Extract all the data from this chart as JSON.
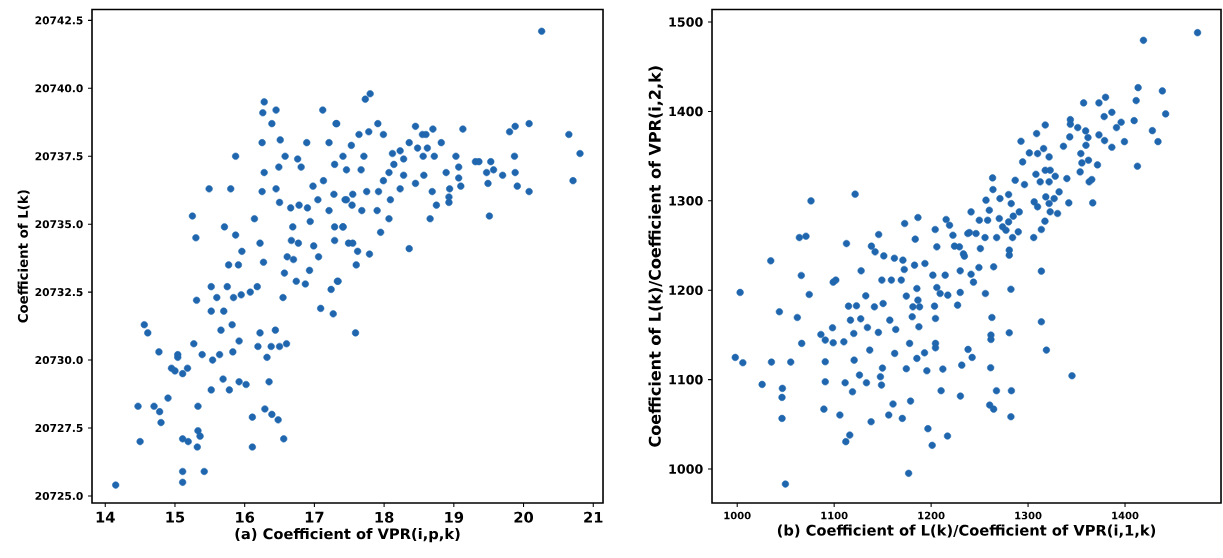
{
  "chart_data": [
    {
      "type": "scatter",
      "xlabel": "(a) Coefficient of VPR(i,p,k)",
      "ylabel": "Coefficient of L(k)",
      "marker": "circle",
      "xlim": [
        13.81,
        21.14
      ],
      "ylim": [
        20724.74,
        20742.9
      ],
      "xticks": [
        14,
        15,
        16,
        17,
        18,
        19,
        20,
        21
      ],
      "yticks": [
        {
          "value": 20725,
          "label": "20725.0"
        },
        {
          "value": 20727.5,
          "label": "20727.5"
        },
        {
          "value": 20730,
          "label": "20730.0"
        },
        {
          "value": 20732.5,
          "label": "20732.5"
        },
        {
          "value": 20735,
          "label": "20735.0"
        },
        {
          "value": 20737.5,
          "label": "20737.5"
        },
        {
          "value": 20740,
          "label": "20740.0"
        },
        {
          "value": 20742.5,
          "label": "20742.5"
        }
      ],
      "series": [
        {
          "color": "#1f66ae",
          "x": [
            14.15,
            14.47,
            14.5,
            14.56,
            14.61,
            14.7,
            14.78,
            14.8,
            14.77,
            14.9,
            14.95,
            15.0,
            15.04,
            15.04,
            15.11,
            15.11,
            15.11,
            15.11,
            15.19,
            15.18,
            15.25,
            15.3,
            15.31,
            15.27,
            15.33,
            15.32,
            15.33,
            15.36,
            15.39,
            15.42,
            15.49,
            15.52,
            15.52,
            15.54,
            15.52,
            15.6,
            15.64,
            15.66,
            15.69,
            15.7,
            15.71,
            15.75,
            15.77,
            15.78,
            15.82,
            15.8,
            15.87,
            15.87,
            15.84,
            15.83,
            15.92,
            15.92,
            15.91,
            15.95,
            15.96,
            16.02,
            16.08,
            16.11,
            16.11,
            16.14,
            16.18,
            16.19,
            16.22,
            16.22,
            16.25,
            16.25,
            16.26,
            16.28,
            16.27,
            16.29,
            16.28,
            16.32,
            16.35,
            16.38,
            16.39,
            16.39,
            16.44,
            16.45,
            16.45,
            16.48,
            16.49,
            16.5,
            16.5,
            16.51,
            16.55,
            16.56,
            16.57,
            16.58,
            16.6,
            16.61,
            16.66,
            16.67,
            16.69,
            16.7,
            16.74,
            16.76,
            16.77,
            16.78,
            16.81,
            16.87,
            16.89,
            16.9,
            16.93,
            16.94,
            16.98,
            16.99,
            17.05,
            17.06,
            17.09,
            17.12,
            17.13,
            17.21,
            17.21,
            17.24,
            17.27,
            17.29,
            17.29,
            17.32,
            17.33,
            17.28,
            17.41,
            17.44,
            17.46,
            17.49,
            20.26,
            17.73,
            17.8,
            17.31,
            17.91,
            17.64,
            17.78,
            17.99,
            18.45,
            18.55,
            18.6,
            18.7,
            19.13,
            19.8,
            19.88,
            20.08,
            20.65,
            20.81,
            20.71,
            19.87,
            19.88,
            19.91,
            20.08,
            19.51,
            19.7,
            19.53,
            19.57,
            19.47,
            19.49,
            19.31,
            19.36,
            19.03,
            19.07,
            19.07,
            19.1,
            18.94,
            18.93,
            18.93,
            18.89,
            18.82,
            18.75,
            18.66,
            18.69,
            18.57,
            18.56,
            18.48,
            18.62,
            18.72,
            18.36,
            18.23,
            18.28,
            18.12,
            18.14,
            18.07,
            17.99,
            17.92,
            18.09,
            18.23,
            18.45,
            18.36,
            18.07,
            17.95,
            17.9,
            17.75,
            17.71,
            17.67,
            17.79,
            17.62,
            17.6,
            17.55,
            17.68,
            17.54,
            17.46,
            17.53,
            17.41,
            17.59,
            17.34,
            17.29,
            17.41,
            17.55,
            18.28
          ],
          "values": [
            20725.4,
            20728.3,
            20727.0,
            20731.3,
            20731.0,
            20728.3,
            20728.1,
            20727.7,
            20730.3,
            20728.6,
            20729.7,
            20729.6,
            20730.2,
            20730.1,
            20729.5,
            20725.9,
            20725.5,
            20727.1,
            20727.0,
            20729.7,
            20735.3,
            20734.5,
            20732.2,
            20730.6,
            20728.3,
            20726.8,
            20727.4,
            20727.2,
            20730.2,
            20725.9,
            20736.3,
            20732.7,
            20731.8,
            20730.0,
            20728.9,
            20732.3,
            20730.2,
            20731.1,
            20729.3,
            20731.8,
            20734.9,
            20732.7,
            20733.5,
            20728.9,
            20731.3,
            20736.3,
            20737.5,
            20734.6,
            20732.3,
            20730.3,
            20730.7,
            20729.2,
            20733.5,
            20732.4,
            20734.0,
            20729.1,
            20732.5,
            20727.9,
            20726.8,
            20735.2,
            20732.7,
            20730.5,
            20734.3,
            20731.0,
            20736.2,
            20738.0,
            20739.1,
            20739.5,
            20733.6,
            20728.2,
            20736.9,
            20730.1,
            20729.2,
            20730.5,
            20738.7,
            20728.0,
            20731.1,
            20739.2,
            20736.3,
            20727.8,
            20737.1,
            20735.8,
            20730.5,
            20738.1,
            20732.3,
            20727.1,
            20733.2,
            20737.5,
            20730.6,
            20733.8,
            20735.6,
            20734.4,
            20734.9,
            20733.7,
            20732.9,
            20737.4,
            20734.3,
            20735.7,
            20737.1,
            20732.8,
            20738.0,
            20735.6,
            20733.3,
            20735.1,
            20736.4,
            20734.2,
            20735.9,
            20733.8,
            20731.9,
            20739.2,
            20736.6,
            20735.5,
            20738.0,
            20732.6,
            20731.7,
            20737.2,
            20734.4,
            20738.7,
            20732.9,
            20736.1,
            20734.9,
            20735.9,
            20737.0,
            20734.3,
            20742.1,
            20739.6,
            20739.8,
            20738.7,
            20738.7,
            20738.3,
            20738.4,
            20738.3,
            20738.6,
            20738.3,
            20738.3,
            20738.5,
            20738.5,
            20738.4,
            20738.6,
            20738.7,
            20738.3,
            20737.6,
            20736.6,
            20737.5,
            20736.9,
            20736.4,
            20736.2,
            20735.3,
            20736.8,
            20737.3,
            20737.0,
            20736.9,
            20736.5,
            20737.3,
            20737.3,
            20737.5,
            20737.1,
            20736.7,
            20736.4,
            20736.3,
            20736.0,
            20735.8,
            20736.9,
            20738.0,
            20735.7,
            20735.2,
            20736.2,
            20736.8,
            20737.5,
            20737.8,
            20737.8,
            20737.5,
            20738.0,
            20737.7,
            20737.4,
            20737.6,
            20737.2,
            20736.9,
            20736.6,
            20736.2,
            20735.9,
            20736.3,
            20736.5,
            20734.1,
            20735.2,
            20734.7,
            20735.5,
            20736.2,
            20737.5,
            20737.0,
            20733.9,
            20734.0,
            20733.5,
            20734.3,
            20735.5,
            20735.7,
            20735.9,
            20737.9,
            20737.5,
            20731.0,
            20732.9,
            20734.9,
            20734.9,
            20736.1,
            20736.8
          ]
        }
      ]
    },
    {
      "type": "scatter",
      "xlabel": "(b) Coefficient of L(k)/Coefficient of VPR(i,1,k)",
      "ylabel": "Coefficient of L(k)/Coefficient of VPR(i,2,k)",
      "marker": "circle",
      "xlim": [
        974,
        1499
      ],
      "ylim": [
        962,
        1514
      ],
      "xticks": [
        1000,
        1100,
        1200,
        1300,
        1400
      ],
      "yticks": [
        1000,
        1100,
        1200,
        1300,
        1400,
        1500
      ],
      "series": [
        {
          "color": "#1f66ae",
          "x": [
            998,
            1005.8,
            1003,
            1025.7,
            1034.6,
            1035.3,
            1043.5,
            1046.6,
            1046.2,
            1046.2,
            1049.7,
            1055.2,
            1062,
            1066.5,
            1066.1,
            1064.1,
            1070.9,
            1074.3,
            1076.1,
            1086.3,
            1090.8,
            1099,
            1090.8,
            1090.8,
            1089.4,
            1098.3,
            1099,
            1101.7,
            1105.9,
            1110,
            1111.3,
            1112.7,
            1112,
            1116.1,
            1114.8,
            1116.8,
            1118.9,
            1120.2,
            1120.6,
            1121.6,
            1123,
            1126.1,
            1127.8,
            1127.4,
            1132.6,
            1133.3,
            1134.3,
            1136.7,
            1138.1,
            1138.4,
            1141.5,
            1142.2,
            1145.9,
            1145.6,
            1147.7,
            1149.8,
            1148.8,
            1150.5,
            1151.2,
            1149.2,
            1157.4,
            1159,
            1156.3,
            1160.7,
            1163.5,
            1162.4,
            1162.1,
            1169.2,
            1170.3,
            1170.9,
            1172.3,
            1172.7,
            1174.4,
            1174.4,
            1176.8,
            1177.8,
            1178.8,
            1180.5,
            1181.2,
            1182.9,
            1183.6,
            1185.3,
            1186.4,
            1186.4,
            1188.1,
            1187.4,
            1185.3,
            1193.2,
            1193.6,
            1195.6,
            1196.7,
            1201.1,
            1201.8,
            1203.5,
            1204.5,
            1204.5,
            1204.2,
            1204.5,
            1205.9,
            1205.9,
            1209.3,
            1210.3,
            1212.1,
            1214.5,
            1215.5,
            1217.2,
            1216.9,
            1219,
            1222.5,
            1227.3,
            1230,
            1230,
            1231.6,
            1230.2,
            1233.3,
            1238.1,
            1237.8,
            1474.8,
            1419,
            1413.5,
            1438.5,
            1411.5,
            1441.9,
            1357.3,
            1373.1,
            1379.9,
            1386.4,
            1378.5,
            1396,
            1391.2,
            1409.4,
            1428.2,
            1434,
            1412.8,
            1399.4,
            1386.4,
            1378.9,
            1373.1,
            1343.6,
            1343.6,
            1351.2,
            1359.4,
            1361.8,
            1359.7,
            1343,
            1336.5,
            1317.7,
            1308.8,
            1292.7,
            1301.3,
            1309.8,
            1316,
            1321.7,
            1294.4,
            1354.4,
            1355.5,
            1362.3,
            1371.6,
            1353.7,
            1365.7,
            1363,
            1366.7,
            1342,
            1340,
            1328,
            1322.8,
            1317.7,
            1312.5,
            1308.1,
            1321.7,
            1332,
            1326.9,
            1318.3,
            1306.3,
            1309.8,
            1321.7,
            1322.8,
            1330.4,
            1317.4,
            1313.7,
            1305.8,
            1313.7,
            1296.3,
            1286.7,
            1263.4,
            1263.8,
            1256.6,
            1271,
            1279.9,
            1282.6,
            1290.9,
            1284.7,
            1279.9,
            1273.7,
            1270.3,
            1260,
            1258.3,
            1249.7,
            1241.2,
            1239.5,
            1246.3,
            1255.6,
            1267.6,
            1284,
            1289.9,
            1277.2,
            1224.1,
            1229.2,
            1234.3,
            1250.8,
            1280.6,
            1280.6,
            1264.5,
            1249.3,
            1241.2,
            1243.7,
            1256,
            1282.3,
            1262.7,
            1261.7,
            1261.7,
            1280.6,
            1313.7,
            1318.9,
            1345.3,
            1242.3,
            1261.4,
            1267.4,
            1282.8,
            1260.4,
            1264.5,
            1282.3
          ],
          "values": [
            1124.8,
            1118.9,
            1197.5,
            1094.6,
            1232.9,
            1119.6,
            1175.9,
            1090.2,
            1080.1,
            1056.6,
            983.2,
            1119.6,
            1169.5,
            1140.5,
            1216.5,
            1258.9,
            1260.4,
            1195.2,
            1299.9,
            1150.5,
            1144.2,
            1141.2,
            1120,
            1097.6,
            1067,
            1158,
            1209,
            1211.3,
            1060.4,
            1142.3,
            1096.5,
            1252.2,
            1030.6,
            1038,
            1182.2,
            1166.5,
            1086.4,
            1151.6,
            1121.8,
            1307.4,
            1182.6,
            1105.1,
            1221.7,
            1168,
            1193.7,
            1096.5,
            1158.3,
            1133,
            1052.9,
            1249.3,
            1181.4,
            1242.9,
            1262.3,
            1152.8,
            1103.2,
            1112.9,
            1093.9,
            1185.1,
            1238.4,
            1211.3,
            1166.5,
            1211.3,
            1060.4,
            1072.7,
            1156.1,
            1129.3,
            1235.8,
            1211.3,
            1056.6,
            1233.6,
            1223.2,
            1274.6,
            1112.2,
            1193.4,
            995.2,
            1140.5,
            1076,
            1170.3,
            1181.4,
            1228,
            1257.1,
            1201.9,
            1281.3,
            1188.9,
            1181.4,
            1159.1,
            1123.7,
            1130,
            1229.9,
            1109.9,
            1045.1,
            1026.5,
            1216.8,
            1182.2,
            1140.5,
            1135.6,
            1267.9,
            1168.4,
            1203,
            1248.5,
            1196.3,
            1087.6,
            1111.8,
            1216.8,
            1279.1,
            1194.5,
            1036.9,
            1272.7,
            1261.5,
            1183.3,
            1221.7,
            1197.5,
            1116.2,
            1081.6,
            1240.6,
            1133.8,
            1263.4,
            1488.1,
            1479.5,
            1426.6,
            1422.9,
            1412.1,
            1397.2,
            1409.5,
            1409.5,
            1415.8,
            1399,
            1394.2,
            1387.9,
            1381.9,
            1389.7,
            1378.5,
            1366.2,
            1338.7,
            1366.2,
            1359.9,
            1367.4,
            1373.7,
            1390.8,
            1385.6,
            1381.9,
            1378.2,
            1370.7,
            1362.1,
            1371.5,
            1361,
            1384.8,
            1375.2,
            1366.6,
            1353.6,
            1352.8,
            1358.4,
            1349.1,
            1343.5,
            1352.8,
            1342.4,
            1345.4,
            1340.2,
            1332.3,
            1323.8,
            1321.2,
            1297.7,
            1297.7,
            1324.9,
            1327.5,
            1334.2,
            1334.2,
            1321.2,
            1329.7,
            1321.2,
            1310,
            1302.5,
            1304.4,
            1298.8,
            1293.3,
            1297,
            1287.7,
            1285.8,
            1277.2,
            1267.9,
            1258.9,
            1221.3,
            1318.2,
            1323,
            1325.6,
            1312.6,
            1300.7,
            1302.5,
            1307,
            1296.9,
            1287.6,
            1282.8,
            1276.4,
            1270.9,
            1280.2,
            1289.5,
            1278.3,
            1278.3,
            1287.6,
            1264.5,
            1263.4,
            1258.9,
            1258.9,
            1258.9,
            1265.3,
            1267.1,
            1249.3,
            1248.5,
            1238.1,
            1246.6,
            1244.8,
            1239.2,
            1226.2,
            1225.4,
            1217.9,
            1209,
            1196.3,
            1201.1,
            1169.5,
            1149.8,
            1144.9,
            1152.4,
            1164.7,
            1133,
            1104.3,
            1124.8,
            1113.3,
            1087.6,
            1087.6,
            1071.5,
            1067,
            1058.5
          ]
        }
      ]
    }
  ]
}
